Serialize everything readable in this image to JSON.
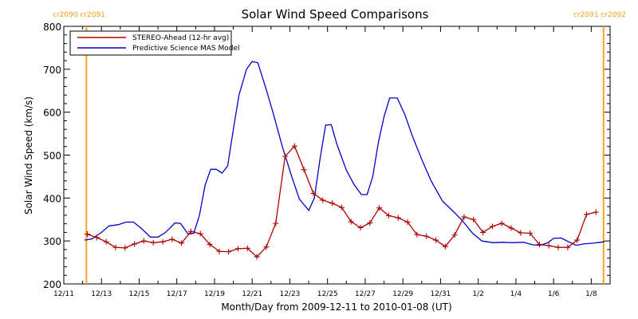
{
  "chart_data": {
    "type": "line",
    "title": "Solar Wind Speed Comparisons",
    "xlabel": "Month/Day from 2009-12-11 to 2010-01-08 (UT)",
    "ylabel": "Solar Wind Speed (km/s)",
    "ylim": [
      200,
      800
    ],
    "yticks": [
      200,
      300,
      400,
      500,
      600,
      700,
      800
    ],
    "xlim": [
      0,
      29
    ],
    "x_unit": "days after 2009-12-11 00:00 UT",
    "xtick_labels": [
      {
        "x": 0,
        "label": "12/11"
      },
      {
        "x": 2,
        "label": "12/13"
      },
      {
        "x": 4,
        "label": "12/15"
      },
      {
        "x": 6,
        "label": "12/17"
      },
      {
        "x": 8,
        "label": "12/19"
      },
      {
        "x": 10,
        "label": "12/21"
      },
      {
        "x": 12,
        "label": "12/23"
      },
      {
        "x": 14,
        "label": "12/25"
      },
      {
        "x": 16,
        "label": "12/27"
      },
      {
        "x": 18,
        "label": "12/29"
      },
      {
        "x": 20,
        "label": "12/31"
      },
      {
        "x": 22,
        "label": "1/2"
      },
      {
        "x": 24,
        "label": "1/4"
      },
      {
        "x": 26,
        "label": "1/6"
      },
      {
        "x": 28,
        "label": "1/8"
      }
    ],
    "legend_position": "top-left",
    "series": [
      {
        "name": "STEREO-Ahead (12-hr avg)",
        "color": "#b00000",
        "marker": "plus",
        "points": [
          [
            1.25,
            316
          ],
          [
            1.75,
            308
          ],
          [
            2.25,
            298
          ],
          [
            2.75,
            285
          ],
          [
            3.25,
            284
          ],
          [
            3.75,
            293
          ],
          [
            4.25,
            300
          ],
          [
            4.75,
            296
          ],
          [
            5.25,
            298
          ],
          [
            5.75,
            304
          ],
          [
            6.25,
            295
          ],
          [
            6.75,
            322
          ],
          [
            7.25,
            317
          ],
          [
            7.75,
            292
          ],
          [
            8.25,
            276
          ],
          [
            8.75,
            275
          ],
          [
            9.25,
            282
          ],
          [
            9.75,
            283
          ],
          [
            10.25,
            263
          ],
          [
            10.75,
            286
          ],
          [
            11.25,
            341
          ],
          [
            11.75,
            497
          ],
          [
            12.25,
            521
          ],
          [
            12.75,
            466
          ],
          [
            13.25,
            411
          ],
          [
            13.75,
            395
          ],
          [
            14.25,
            388
          ],
          [
            14.75,
            378
          ],
          [
            15.25,
            345
          ],
          [
            15.75,
            331
          ],
          [
            16.25,
            342
          ],
          [
            16.75,
            377
          ],
          [
            17.25,
            359
          ],
          [
            17.75,
            354
          ],
          [
            18.25,
            344
          ],
          [
            18.75,
            315
          ],
          [
            19.25,
            311
          ],
          [
            19.75,
            302
          ],
          [
            20.25,
            287
          ],
          [
            20.75,
            314
          ],
          [
            21.25,
            356
          ],
          [
            21.75,
            350
          ],
          [
            22.25,
            320
          ],
          [
            22.75,
            334
          ],
          [
            23.25,
            341
          ],
          [
            23.75,
            330
          ],
          [
            24.25,
            319
          ],
          [
            24.75,
            318
          ],
          [
            25.25,
            292
          ],
          [
            25.75,
            289
          ],
          [
            26.25,
            285
          ],
          [
            26.75,
            285
          ],
          [
            27.25,
            302
          ],
          [
            27.75,
            362
          ],
          [
            28.25,
            367
          ]
        ]
      },
      {
        "name": "Predictive Science MAS Model",
        "color": "#0000cc",
        "marker": "none",
        "points": [
          [
            1.1,
            302
          ],
          [
            1.5,
            305
          ],
          [
            2.0,
            320
          ],
          [
            2.4,
            335
          ],
          [
            2.9,
            338
          ],
          [
            3.3,
            344
          ],
          [
            3.7,
            344
          ],
          [
            4.1,
            330
          ],
          [
            4.6,
            309
          ],
          [
            5.0,
            309
          ],
          [
            5.4,
            320
          ],
          [
            5.9,
            342
          ],
          [
            6.2,
            341
          ],
          [
            6.6,
            316
          ],
          [
            6.9,
            318
          ],
          [
            7.2,
            360
          ],
          [
            7.5,
            430
          ],
          [
            7.8,
            467
          ],
          [
            8.1,
            467
          ],
          [
            8.4,
            458
          ],
          [
            8.7,
            475
          ],
          [
            9.0,
            560
          ],
          [
            9.3,
            640
          ],
          [
            9.7,
            700
          ],
          [
            10.0,
            718
          ],
          [
            10.3,
            715
          ],
          [
            10.7,
            660
          ],
          [
            11.1,
            600
          ],
          [
            11.6,
            520
          ],
          [
            12.1,
            450
          ],
          [
            12.5,
            398
          ],
          [
            13.0,
            371
          ],
          [
            13.3,
            400
          ],
          [
            13.6,
            490
          ],
          [
            13.9,
            570
          ],
          [
            14.2,
            571
          ],
          [
            14.5,
            525
          ],
          [
            15.0,
            465
          ],
          [
            15.4,
            432
          ],
          [
            15.8,
            408
          ],
          [
            16.1,
            408
          ],
          [
            16.4,
            450
          ],
          [
            16.7,
            530
          ],
          [
            17.0,
            590
          ],
          [
            17.3,
            633
          ],
          [
            17.7,
            633
          ],
          [
            18.1,
            595
          ],
          [
            18.5,
            545
          ],
          [
            19.0,
            490
          ],
          [
            19.5,
            440
          ],
          [
            20.1,
            393
          ],
          [
            20.7,
            368
          ],
          [
            21.2,
            345
          ],
          [
            21.7,
            318
          ],
          [
            22.2,
            300
          ],
          [
            22.8,
            296
          ],
          [
            23.3,
            297
          ],
          [
            23.8,
            296
          ],
          [
            24.4,
            297
          ],
          [
            24.9,
            291
          ],
          [
            25.3,
            290
          ],
          [
            25.7,
            296
          ],
          [
            26.0,
            306
          ],
          [
            26.4,
            307
          ],
          [
            26.8,
            298
          ],
          [
            27.2,
            290
          ],
          [
            27.6,
            293
          ],
          [
            28.1,
            295
          ],
          [
            28.7,
            298
          ]
        ]
      }
    ],
    "carrington_markers": [
      {
        "x": 1.2,
        "label": "cr2090 cr2091",
        "side": "left"
      },
      {
        "x": 28.65,
        "label": "cr2091 cr2092",
        "side": "right"
      }
    ],
    "marker_color": "#f5a020"
  }
}
